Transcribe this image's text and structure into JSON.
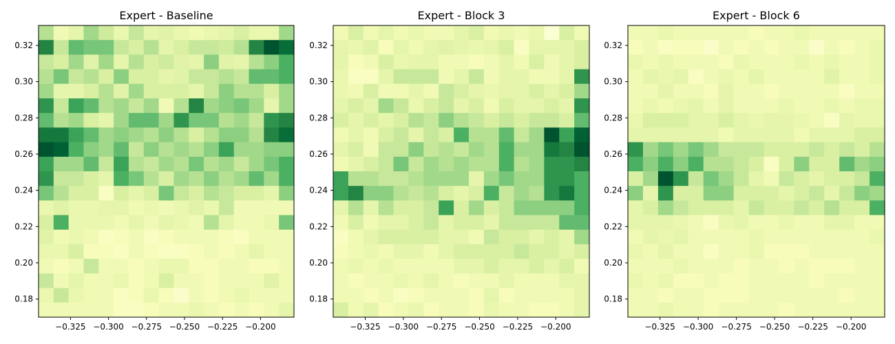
{
  "chart_data": [
    {
      "type": "heatmap",
      "title": "Expert - Baseline",
      "xlabel": "",
      "ylabel": "",
      "xlim": [
        -0.346,
        -0.178
      ],
      "ylim": [
        0.17,
        0.331
      ],
      "x_ticks": [
        -0.325,
        -0.3,
        -0.275,
        -0.25,
        -0.225,
        -0.2
      ],
      "x_tick_labels": [
        "−0.325",
        "−0.300",
        "−0.275",
        "−0.250",
        "−0.225",
        "−0.200"
      ],
      "y_ticks": [
        0.18,
        0.2,
        0.22,
        0.24,
        0.26,
        0.28,
        0.3,
        0.32
      ],
      "y_tick_labels": [
        "0.18",
        "0.20",
        "0.22",
        "0.24",
        "0.26",
        "0.28",
        "0.30",
        "0.32"
      ],
      "colormap": "YlGn",
      "grid": [
        [
          0.35,
          0.15,
          0.2,
          0.4,
          0.28,
          0.18,
          0.3,
          0.2,
          0.22,
          0.18,
          0.15,
          0.18,
          0.2,
          0.25,
          0.18,
          0.18,
          0.4
        ],
        [
          0.75,
          0.3,
          0.55,
          0.5,
          0.5,
          0.3,
          0.25,
          0.35,
          0.2,
          0.25,
          0.3,
          0.3,
          0.28,
          0.35,
          0.75,
          0.95,
          0.85
        ],
        [
          0.3,
          0.25,
          0.4,
          0.22,
          0.4,
          0.2,
          0.35,
          0.25,
          0.28,
          0.22,
          0.2,
          0.45,
          0.22,
          0.2,
          0.35,
          0.45,
          0.6
        ],
        [
          0.35,
          0.5,
          0.3,
          0.35,
          0.25,
          0.45,
          0.25,
          0.25,
          0.2,
          0.22,
          0.3,
          0.3,
          0.35,
          0.3,
          0.55,
          0.55,
          0.6
        ],
        [
          0.4,
          0.2,
          0.2,
          0.25,
          0.35,
          0.22,
          0.4,
          0.25,
          0.25,
          0.25,
          0.2,
          0.3,
          0.45,
          0.35,
          0.35,
          0.25,
          0.4
        ],
        [
          0.7,
          0.3,
          0.65,
          0.55,
          0.35,
          0.4,
          0.3,
          0.4,
          0.15,
          0.35,
          0.75,
          0.4,
          0.45,
          0.5,
          0.4,
          0.2,
          0.4
        ],
        [
          0.55,
          0.35,
          0.4,
          0.25,
          0.2,
          0.4,
          0.55,
          0.55,
          0.4,
          0.7,
          0.5,
          0.5,
          0.35,
          0.4,
          0.3,
          0.7,
          0.75
        ],
        [
          0.8,
          0.8,
          0.65,
          0.55,
          0.4,
          0.45,
          0.4,
          0.35,
          0.45,
          0.35,
          0.25,
          0.35,
          0.45,
          0.45,
          0.35,
          0.75,
          0.85
        ],
        [
          0.95,
          0.9,
          0.6,
          0.45,
          0.4,
          0.55,
          0.3,
          0.45,
          0.35,
          0.4,
          0.35,
          0.45,
          0.65,
          0.4,
          0.4,
          0.45,
          0.45
        ],
        [
          0.65,
          0.4,
          0.4,
          0.55,
          0.3,
          0.65,
          0.35,
          0.3,
          0.4,
          0.35,
          0.5,
          0.35,
          0.4,
          0.3,
          0.4,
          0.5,
          0.6
        ],
        [
          0.7,
          0.3,
          0.3,
          0.25,
          0.2,
          0.6,
          0.5,
          0.35,
          0.25,
          0.4,
          0.35,
          0.45,
          0.35,
          0.4,
          0.55,
          0.4,
          0.6
        ],
        [
          0.5,
          0.35,
          0.25,
          0.25,
          0.1,
          0.25,
          0.2,
          0.25,
          0.5,
          0.3,
          0.25,
          0.35,
          0.3,
          0.25,
          0.25,
          0.2,
          0.45
        ],
        [
          0.18,
          0.22,
          0.18,
          0.18,
          0.2,
          0.2,
          0.15,
          0.18,
          0.15,
          0.18,
          0.22,
          0.18,
          0.3,
          0.15,
          0.15,
          0.15,
          0.15
        ],
        [
          0.25,
          0.6,
          0.18,
          0.18,
          0.18,
          0.15,
          0.2,
          0.15,
          0.2,
          0.18,
          0.15,
          0.35,
          0.2,
          0.15,
          0.15,
          0.18,
          0.5
        ],
        [
          0.22,
          0.15,
          0.18,
          0.15,
          0.1,
          0.12,
          0.15,
          0.1,
          0.12,
          0.15,
          0.15,
          0.15,
          0.12,
          0.1,
          0.15,
          0.15,
          0.15
        ],
        [
          0.18,
          0.18,
          0.25,
          0.12,
          0.12,
          0.1,
          0.15,
          0.12,
          0.1,
          0.1,
          0.12,
          0.15,
          0.12,
          0.15,
          0.2,
          0.15,
          0.15
        ],
        [
          0.15,
          0.12,
          0.15,
          0.3,
          0.15,
          0.15,
          0.12,
          0.15,
          0.18,
          0.18,
          0.12,
          0.12,
          0.15,
          0.15,
          0.12,
          0.12,
          0.15
        ],
        [
          0.3,
          0.15,
          0.2,
          0.15,
          0.15,
          0.18,
          0.12,
          0.15,
          0.25,
          0.15,
          0.15,
          0.12,
          0.15,
          0.15,
          0.15,
          0.22,
          0.15
        ],
        [
          0.18,
          0.3,
          0.18,
          0.15,
          0.15,
          0.1,
          0.12,
          0.18,
          0.12,
          0.08,
          0.15,
          0.12,
          0.15,
          0.18,
          0.15,
          0.15,
          0.15
        ],
        [
          0.15,
          0.15,
          0.15,
          0.15,
          0.15,
          0.1,
          0.1,
          0.12,
          0.15,
          0.15,
          0.18,
          0.15,
          0.12,
          0.15,
          0.12,
          0.15,
          0.2
        ]
      ]
    },
    {
      "type": "heatmap",
      "title": "Expert - Block 3",
      "xlabel": "",
      "ylabel": "",
      "xlim": [
        -0.346,
        -0.178
      ],
      "ylim": [
        0.17,
        0.331
      ],
      "x_ticks": [
        -0.325,
        -0.3,
        -0.275,
        -0.25,
        -0.225,
        -0.2
      ],
      "x_tick_labels": [
        "−0.325",
        "−0.300",
        "−0.275",
        "−0.250",
        "−0.225",
        "−0.200"
      ],
      "y_ticks": [
        0.18,
        0.2,
        0.22,
        0.24,
        0.26,
        0.28,
        0.3,
        0.32
      ],
      "y_tick_labels": [
        "0.18",
        "0.20",
        "0.22",
        "0.24",
        "0.26",
        "0.28",
        "0.30",
        "0.32"
      ],
      "colormap": "YlGn",
      "grid": [
        [
          0.15,
          0.25,
          0.15,
          0.2,
          0.15,
          0.18,
          0.15,
          0.15,
          0.2,
          0.25,
          0.15,
          0.18,
          0.15,
          0.18,
          0.05,
          0.25,
          0.15
        ],
        [
          0.2,
          0.18,
          0.22,
          0.12,
          0.2,
          0.15,
          0.2,
          0.22,
          0.2,
          0.18,
          0.2,
          0.25,
          0.1,
          0.2,
          0.2,
          0.2,
          0.25
        ],
        [
          0.2,
          0.12,
          0.15,
          0.25,
          0.18,
          0.2,
          0.2,
          0.15,
          0.15,
          0.12,
          0.15,
          0.2,
          0.15,
          0.25,
          0.15,
          0.2,
          0.25
        ],
        [
          0.18,
          0.1,
          0.1,
          0.2,
          0.3,
          0.3,
          0.3,
          0.15,
          0.2,
          0.3,
          0.15,
          0.2,
          0.2,
          0.15,
          0.15,
          0.2,
          0.7
        ],
        [
          0.18,
          0.15,
          0.25,
          0.15,
          0.15,
          0.2,
          0.15,
          0.3,
          0.25,
          0.2,
          0.18,
          0.2,
          0.2,
          0.25,
          0.2,
          0.25,
          0.4
        ],
        [
          0.2,
          0.25,
          0.2,
          0.4,
          0.3,
          0.18,
          0.25,
          0.3,
          0.2,
          0.25,
          0.15,
          0.25,
          0.2,
          0.2,
          0.25,
          0.2,
          0.7
        ],
        [
          0.25,
          0.2,
          0.25,
          0.2,
          0.25,
          0.35,
          0.3,
          0.45,
          0.35,
          0.3,
          0.25,
          0.3,
          0.25,
          0.3,
          0.3,
          0.25,
          0.55
        ],
        [
          0.15,
          0.2,
          0.15,
          0.25,
          0.3,
          0.2,
          0.3,
          0.25,
          0.6,
          0.35,
          0.35,
          0.55,
          0.3,
          0.4,
          0.95,
          0.65,
          0.9
        ],
        [
          0.2,
          0.25,
          0.15,
          0.3,
          0.3,
          0.45,
          0.3,
          0.35,
          0.3,
          0.4,
          0.35,
          0.6,
          0.4,
          0.4,
          0.8,
          0.75,
          0.95
        ],
        [
          0.15,
          0.2,
          0.25,
          0.3,
          0.5,
          0.3,
          0.4,
          0.35,
          0.4,
          0.35,
          0.35,
          0.6,
          0.35,
          0.4,
          0.7,
          0.7,
          0.75
        ],
        [
          0.65,
          0.35,
          0.35,
          0.3,
          0.3,
          0.35,
          0.4,
          0.4,
          0.4,
          0.2,
          0.4,
          0.5,
          0.4,
          0.4,
          0.7,
          0.7,
          0.6
        ],
        [
          0.65,
          0.75,
          0.45,
          0.45,
          0.35,
          0.3,
          0.35,
          0.25,
          0.2,
          0.25,
          0.6,
          0.3,
          0.4,
          0.35,
          0.7,
          0.8,
          0.6
        ],
        [
          0.2,
          0.35,
          0.2,
          0.35,
          0.25,
          0.25,
          0.3,
          0.65,
          0.25,
          0.4,
          0.25,
          0.3,
          0.45,
          0.45,
          0.45,
          0.45,
          0.6
        ],
        [
          0.15,
          0.25,
          0.15,
          0.2,
          0.2,
          0.25,
          0.3,
          0.2,
          0.25,
          0.25,
          0.2,
          0.3,
          0.3,
          0.3,
          0.3,
          0.55,
          0.55
        ],
        [
          0.1,
          0.15,
          0.2,
          0.25,
          0.25,
          0.25,
          0.25,
          0.2,
          0.2,
          0.15,
          0.3,
          0.25,
          0.25,
          0.2,
          0.25,
          0.2,
          0.4
        ],
        [
          0.12,
          0.15,
          0.18,
          0.15,
          0.2,
          0.2,
          0.15,
          0.2,
          0.25,
          0.25,
          0.25,
          0.25,
          0.3,
          0.25,
          0.25,
          0.2,
          0.25
        ],
        [
          0.15,
          0.18,
          0.15,
          0.18,
          0.15,
          0.15,
          0.15,
          0.15,
          0.2,
          0.2,
          0.25,
          0.2,
          0.2,
          0.25,
          0.2,
          0.25,
          0.15
        ],
        [
          0.15,
          0.12,
          0.15,
          0.15,
          0.18,
          0.15,
          0.2,
          0.15,
          0.12,
          0.15,
          0.15,
          0.2,
          0.15,
          0.15,
          0.15,
          0.2,
          0.2
        ],
        [
          0.15,
          0.15,
          0.12,
          0.15,
          0.1,
          0.12,
          0.15,
          0.15,
          0.15,
          0.12,
          0.2,
          0.12,
          0.15,
          0.15,
          0.15,
          0.15,
          0.2
        ],
        [
          0.25,
          0.15,
          0.2,
          0.12,
          0.15,
          0.18,
          0.12,
          0.15,
          0.15,
          0.12,
          0.18,
          0.15,
          0.15,
          0.12,
          0.12,
          0.15,
          0.2
        ]
      ]
    },
    {
      "type": "heatmap",
      "title": "Expert - Block 6",
      "xlabel": "",
      "ylabel": "",
      "xlim": [
        -0.346,
        -0.178
      ],
      "ylim": [
        0.17,
        0.331
      ],
      "x_ticks": [
        -0.325,
        -0.3,
        -0.275,
        -0.25,
        -0.225,
        -0.2
      ],
      "x_tick_labels": [
        "−0.325",
        "−0.300",
        "−0.275",
        "−0.250",
        "−0.225",
        "−0.200"
      ],
      "y_ticks": [
        0.18,
        0.2,
        0.22,
        0.24,
        0.26,
        0.28,
        0.3,
        0.32
      ],
      "y_tick_labels": [
        "0.18",
        "0.20",
        "0.22",
        "0.24",
        "0.26",
        "0.28",
        "0.30",
        "0.32"
      ],
      "colormap": "YlGn",
      "grid": [
        [
          0.15,
          0.15,
          0.18,
          0.15,
          0.15,
          0.15,
          0.15,
          0.15,
          0.12,
          0.15,
          0.15,
          0.18,
          0.15,
          0.15,
          0.15,
          0.15,
          0.15
        ],
        [
          0.12,
          0.15,
          0.1,
          0.12,
          0.12,
          0.08,
          0.15,
          0.12,
          0.15,
          0.12,
          0.15,
          0.15,
          0.08,
          0.15,
          0.12,
          0.15,
          0.18
        ],
        [
          0.18,
          0.15,
          0.18,
          0.15,
          0.15,
          0.15,
          0.12,
          0.18,
          0.15,
          0.15,
          0.15,
          0.18,
          0.15,
          0.18,
          0.15,
          0.15,
          0.18
        ],
        [
          0.15,
          0.2,
          0.18,
          0.2,
          0.1,
          0.15,
          0.18,
          0.15,
          0.2,
          0.15,
          0.15,
          0.15,
          0.15,
          0.22,
          0.15,
          0.15,
          0.18
        ],
        [
          0.15,
          0.15,
          0.2,
          0.15,
          0.15,
          0.12,
          0.2,
          0.15,
          0.15,
          0.12,
          0.15,
          0.15,
          0.15,
          0.15,
          0.1,
          0.15,
          0.15
        ],
        [
          0.15,
          0.18,
          0.15,
          0.18,
          0.2,
          0.15,
          0.2,
          0.15,
          0.15,
          0.15,
          0.18,
          0.15,
          0.15,
          0.18,
          0.15,
          0.18,
          0.18
        ],
        [
          0.18,
          0.25,
          0.25,
          0.25,
          0.2,
          0.2,
          0.25,
          0.2,
          0.18,
          0.2,
          0.2,
          0.18,
          0.15,
          0.1,
          0.2,
          0.18,
          0.18
        ],
        [
          0.2,
          0.2,
          0.2,
          0.2,
          0.2,
          0.2,
          0.15,
          0.2,
          0.2,
          0.2,
          0.2,
          0.15,
          0.2,
          0.2,
          0.2,
          0.25,
          0.25
        ],
        [
          0.7,
          0.4,
          0.5,
          0.4,
          0.5,
          0.4,
          0.3,
          0.3,
          0.3,
          0.25,
          0.25,
          0.25,
          0.3,
          0.25,
          0.3,
          0.25,
          0.35
        ],
        [
          0.6,
          0.45,
          0.6,
          0.45,
          0.6,
          0.35,
          0.35,
          0.3,
          0.25,
          0.1,
          0.25,
          0.45,
          0.25,
          0.25,
          0.55,
          0.4,
          0.45
        ],
        [
          0.25,
          0.4,
          0.95,
          0.7,
          0.3,
          0.5,
          0.4,
          0.3,
          0.2,
          0.15,
          0.3,
          0.25,
          0.2,
          0.25,
          0.25,
          0.3,
          0.6
        ],
        [
          0.45,
          0.2,
          0.7,
          0.25,
          0.25,
          0.45,
          0.45,
          0.25,
          0.25,
          0.25,
          0.2,
          0.25,
          0.3,
          0.2,
          0.3,
          0.45,
          0.4
        ],
        [
          0.2,
          0.25,
          0.4,
          0.3,
          0.25,
          0.25,
          0.25,
          0.2,
          0.3,
          0.25,
          0.25,
          0.3,
          0.25,
          0.35,
          0.25,
          0.25,
          0.6
        ],
        [
          0.2,
          0.2,
          0.2,
          0.18,
          0.15,
          0.1,
          0.18,
          0.2,
          0.15,
          0.15,
          0.18,
          0.15,
          0.15,
          0.2,
          0.2,
          0.15,
          0.15
        ],
        [
          0.15,
          0.2,
          0.18,
          0.2,
          0.15,
          0.15,
          0.15,
          0.15,
          0.18,
          0.15,
          0.15,
          0.15,
          0.15,
          0.15,
          0.15,
          0.15,
          0.18
        ],
        [
          0.18,
          0.15,
          0.2,
          0.15,
          0.15,
          0.1,
          0.15,
          0.15,
          0.18,
          0.12,
          0.12,
          0.12,
          0.15,
          0.15,
          0.15,
          0.15,
          0.15
        ],
        [
          0.15,
          0.15,
          0.15,
          0.18,
          0.15,
          0.15,
          0.15,
          0.12,
          0.15,
          0.15,
          0.12,
          0.15,
          0.12,
          0.12,
          0.12,
          0.15,
          0.15
        ],
        [
          0.18,
          0.15,
          0.18,
          0.12,
          0.12,
          0.15,
          0.12,
          0.12,
          0.15,
          0.15,
          0.15,
          0.15,
          0.12,
          0.15,
          0.15,
          0.15,
          0.15
        ],
        [
          0.15,
          0.15,
          0.12,
          0.15,
          0.15,
          0.12,
          0.12,
          0.12,
          0.15,
          0.15,
          0.15,
          0.15,
          0.15,
          0.15,
          0.12,
          0.15,
          0.15
        ],
        [
          0.15,
          0.15,
          0.18,
          0.15,
          0.15,
          0.12,
          0.15,
          0.15,
          0.15,
          0.15,
          0.12,
          0.15,
          0.15,
          0.15,
          0.15,
          0.15,
          0.15
        ]
      ]
    }
  ]
}
